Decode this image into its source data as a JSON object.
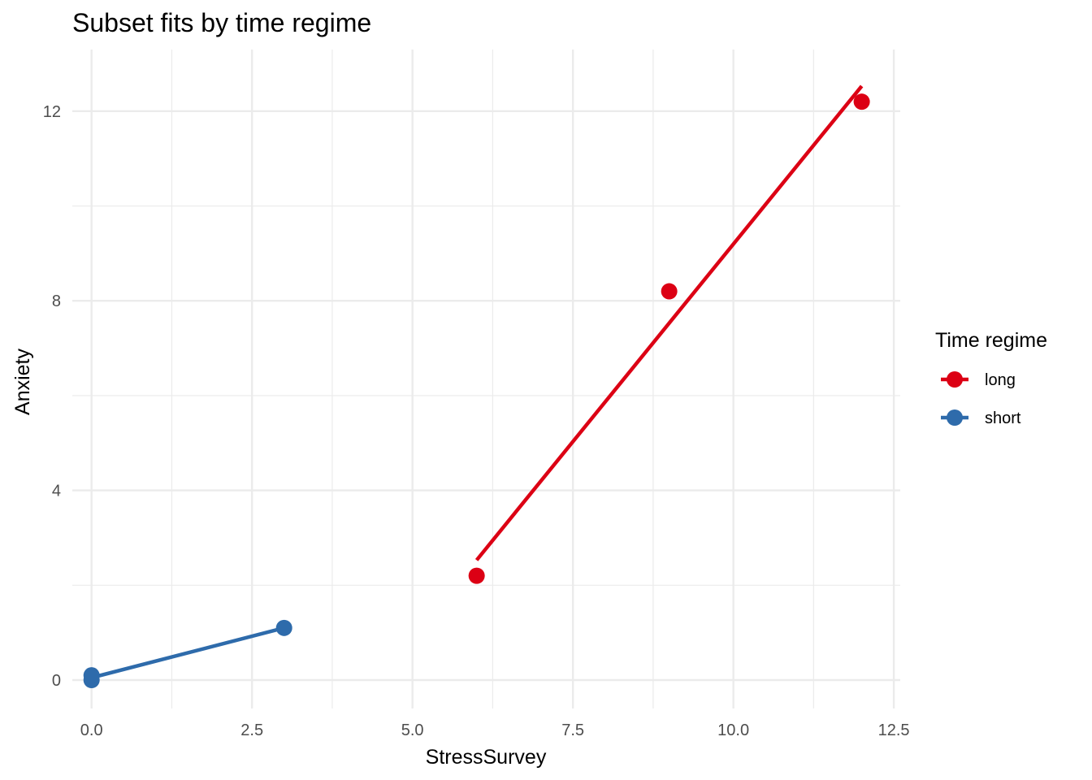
{
  "chart_data": {
    "type": "scatter",
    "title": "Subset fits by time regime",
    "xlabel": "StressSurvey",
    "ylabel": "Anxiety",
    "xlim": [
      -0.3,
      12.6
    ],
    "ylim": [
      -0.6,
      13.3
    ],
    "x_ticks": [
      0.0,
      2.5,
      5.0,
      7.5,
      10.0,
      12.5
    ],
    "x_tick_labels": [
      "0.0",
      "2.5",
      "5.0",
      "7.5",
      "10.0",
      "12.5"
    ],
    "y_ticks": [
      0,
      4,
      8,
      12
    ],
    "y_tick_labels": [
      "0",
      "4",
      "8",
      "12"
    ],
    "grid": true,
    "legend": {
      "title": "Time regime",
      "placement": "right"
    },
    "series": [
      {
        "name": "long",
        "color": "#dc0014",
        "points": [
          {
            "x": 6,
            "y": 2.2
          },
          {
            "x": 9,
            "y": 8.2
          },
          {
            "x": 12,
            "y": 12.2
          }
        ],
        "fit_line": [
          {
            "x": 6,
            "y": 2.53
          },
          {
            "x": 12,
            "y": 12.53
          }
        ]
      },
      {
        "name": "short",
        "color": "#2e6bab",
        "points": [
          {
            "x": 0,
            "y": 0.0
          },
          {
            "x": 0,
            "y": 0.1
          },
          {
            "x": 3,
            "y": 1.1
          }
        ],
        "fit_line": [
          {
            "x": 0,
            "y": 0.05
          },
          {
            "x": 3,
            "y": 1.1
          }
        ]
      }
    ]
  }
}
